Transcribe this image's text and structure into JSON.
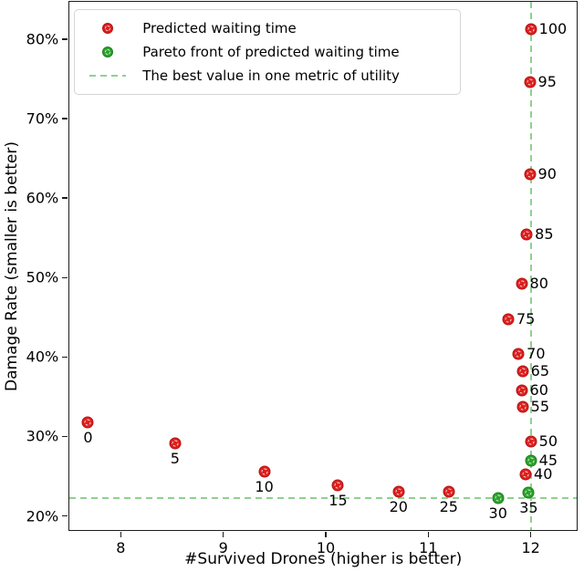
{
  "figure": {
    "xlabel": "#Survived Drones (higher is better)",
    "ylabel": "Damage Rate (smaller is better)"
  },
  "legend": {
    "items": [
      {
        "label": "Predicted waiting time",
        "marker": "red-dot-marker",
        "color": "#dd1f1f"
      },
      {
        "label": "Pareto front of predicted waiting time",
        "marker": "green-dot-marker",
        "color": "#2ba32b"
      },
      {
        "label": "The best value in one metric of utility",
        "marker": "green-dashed-line",
        "color": "#8fd18f"
      }
    ]
  },
  "chart_data": {
    "type": "scatter",
    "title": "",
    "xlabel": "#Survived Drones (higher is better)",
    "ylabel": "Damage Rate (smaller is better)",
    "xlim": [
      7.5,
      12.45
    ],
    "ylim": [
      18.2,
      84.7
    ],
    "x_ticks": [
      8,
      9,
      10,
      11,
      12
    ],
    "y_ticks": [
      20,
      30,
      40,
      50,
      60,
      70,
      80
    ],
    "y_tick_suffix": "%",
    "grid": false,
    "legend_position": "upper left",
    "series": [
      {
        "name": "Predicted waiting time",
        "color": "#dd1f1f",
        "marker_class": "red",
        "points": [
          {
            "label": "0",
            "x": 7.68,
            "y": 31.8,
            "lp": "below"
          },
          {
            "label": "5",
            "x": 8.53,
            "y": 29.1,
            "lp": "below"
          },
          {
            "label": "10",
            "x": 9.4,
            "y": 25.6,
            "lp": "below"
          },
          {
            "label": "15",
            "x": 10.12,
            "y": 23.9,
            "lp": "below"
          },
          {
            "label": "20",
            "x": 10.71,
            "y": 23.0,
            "lp": "below"
          },
          {
            "label": "25",
            "x": 11.2,
            "y": 23.1,
            "lp": "below"
          },
          {
            "label": "40",
            "x": 11.95,
            "y": 25.2,
            "lp": "right"
          },
          {
            "label": "50",
            "x": 12.0,
            "y": 29.4,
            "lp": "right"
          },
          {
            "label": "55",
            "x": 11.92,
            "y": 33.7,
            "lp": "right"
          },
          {
            "label": "60",
            "x": 11.91,
            "y": 35.8,
            "lp": "right"
          },
          {
            "label": "65",
            "x": 11.92,
            "y": 38.2,
            "lp": "right"
          },
          {
            "label": "70",
            "x": 11.88,
            "y": 40.4,
            "lp": "right"
          },
          {
            "label": "75",
            "x": 11.78,
            "y": 44.8,
            "lp": "right"
          },
          {
            "label": "80",
            "x": 11.91,
            "y": 49.2,
            "lp": "right"
          },
          {
            "label": "85",
            "x": 11.96,
            "y": 55.4,
            "lp": "right"
          },
          {
            "label": "90",
            "x": 11.99,
            "y": 63.0,
            "lp": "right"
          },
          {
            "label": "95",
            "x": 11.99,
            "y": 74.6,
            "lp": "right"
          },
          {
            "label": "100",
            "x": 12.0,
            "y": 81.3,
            "lp": "right"
          }
        ]
      },
      {
        "name": "Pareto front of predicted waiting time",
        "color": "#2ba32b",
        "marker_class": "green",
        "points": [
          {
            "label": "30",
            "x": 11.68,
            "y": 22.2,
            "lp": "below"
          },
          {
            "label": "35",
            "x": 11.98,
            "y": 22.9,
            "lp": "below"
          },
          {
            "label": "45",
            "x": 12.0,
            "y": 26.9,
            "lp": "right"
          }
        ]
      }
    ],
    "reference_lines": [
      {
        "orientation": "vertical",
        "x": 12.0,
        "style": "dashed",
        "color": "#8fd18f",
        "meaning": "best #survived drones"
      },
      {
        "orientation": "horizontal",
        "y": 22.2,
        "style": "dashed",
        "color": "#8fd18f",
        "meaning": "best damage rate"
      }
    ]
  }
}
